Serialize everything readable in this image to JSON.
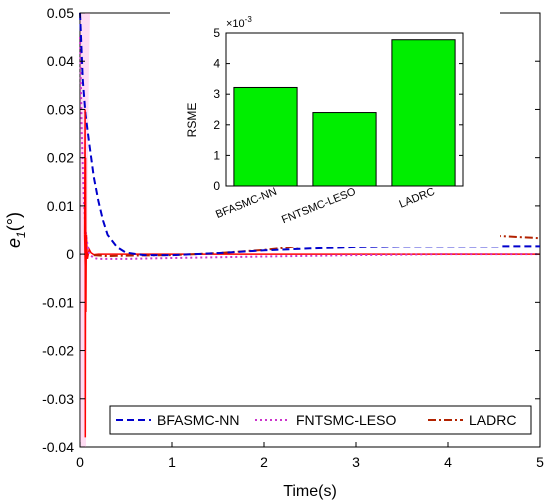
{
  "chart_data": [
    {
      "type": "line",
      "xlabel": "Time(s)",
      "ylabel_main": "e",
      "ylabel_sub": "1",
      "ylabel_unit": "(°)",
      "xlim": [
        0,
        5
      ],
      "ylim": [
        -0.04,
        0.05
      ],
      "x_ticks": [
        0,
        1,
        2,
        3,
        4,
        5
      ],
      "y_ticks": [
        -0.04,
        -0.03,
        -0.02,
        -0.01,
        0,
        0.01,
        0.02,
        0.03,
        0.04,
        0.05
      ],
      "x_tick_labels": [
        "0",
        "1",
        "2",
        "3",
        "4",
        "5"
      ],
      "y_tick_labels": [
        "-0.04",
        "-0.03",
        "-0.02",
        "-0.01",
        "0",
        "0.01",
        "0.02",
        "0.03",
        "0.04",
        "0.05"
      ],
      "grid": false,
      "legend_position": "bottom",
      "series": [
        {
          "name": "BFASMC-NN",
          "color": "#0000cc",
          "style": "dashed",
          "x": [
            0,
            0.03,
            0.06,
            0.1,
            0.15,
            0.2,
            0.25,
            0.3,
            0.4,
            0.5,
            0.7,
            1.0,
            1.5,
            2.0,
            2.5,
            3.0,
            3.5,
            4.0,
            4.5,
            5.0
          ],
          "y": [
            0.05,
            0.036,
            0.029,
            0.023,
            0.016,
            0.011,
            0.007,
            0.004,
            0.0015,
            0.0003,
            -0.0002,
            -0.0002,
            0.0002,
            0.0008,
            0.0012,
            0.0015,
            0.0016,
            0.0016,
            0.0016,
            0.0016
          ]
        },
        {
          "name": "FNTSMC-LESO",
          "color": "#cc33cc",
          "style": "dotted",
          "x": [
            0,
            0.02,
            0.04,
            0.06,
            0.08,
            0.1,
            0.15,
            0.2,
            0.3,
            0.5,
            1.0,
            2.0,
            3.0,
            4.0,
            5.0
          ],
          "y": [
            0.045,
            0.025,
            0.012,
            0.005,
            0.002,
            0.0,
            -0.0008,
            -0.001,
            -0.001,
            -0.001,
            -0.0008,
            -0.0005,
            -0.0002,
            0.0,
            0.0
          ]
        },
        {
          "name": "LADRC",
          "color": "#b22200",
          "style": "dashdot",
          "x": [
            0.15,
            0.3,
            0.5,
            1.0,
            1.5,
            2.0,
            2.5,
            3.0,
            3.5,
            3.8,
            4.2,
            4.5,
            4.8,
            5.0
          ],
          "y": [
            -0.0002,
            -0.0004,
            -0.0003,
            -0.0002,
            0.0002,
            0.0009,
            0.0019,
            0.003,
            0.0037,
            0.004,
            0.004,
            0.0038,
            0.0035,
            0.0033
          ]
        },
        {
          "name": "",
          "color": "#ff0000",
          "style": "solid",
          "x": [
            0.05,
            0.06,
            0.07,
            0.08,
            0.1,
            0.12,
            0.15,
            0.2,
            0.3,
            0.5,
            1.0,
            2.0,
            3.0,
            4.0,
            5.0
          ],
          "y": [
            0.004,
            -0.005,
            0.004,
            -0.001,
            0.001,
            0.0003,
            -0.0001,
            0.0,
            0.0,
            0.0,
            0.0,
            0.0,
            0.0,
            0.0,
            0.0
          ]
        }
      ]
    },
    {
      "type": "bar",
      "categories": [
        "BFASMC-NN",
        "FNTSMC-LESO",
        "LADRC"
      ],
      "values": [
        3.22,
        2.4,
        4.78
      ],
      "ylabel": "RSME",
      "exponent_label": "×10",
      "exponent_power": "-3",
      "ylim": [
        0,
        5
      ],
      "y_ticks": [
        0,
        1,
        2,
        3,
        4,
        5
      ],
      "y_tick_labels": [
        "0",
        "1",
        "2",
        "3",
        "4",
        "5"
      ],
      "bar_color": "#00ee00",
      "grid": false
    }
  ]
}
